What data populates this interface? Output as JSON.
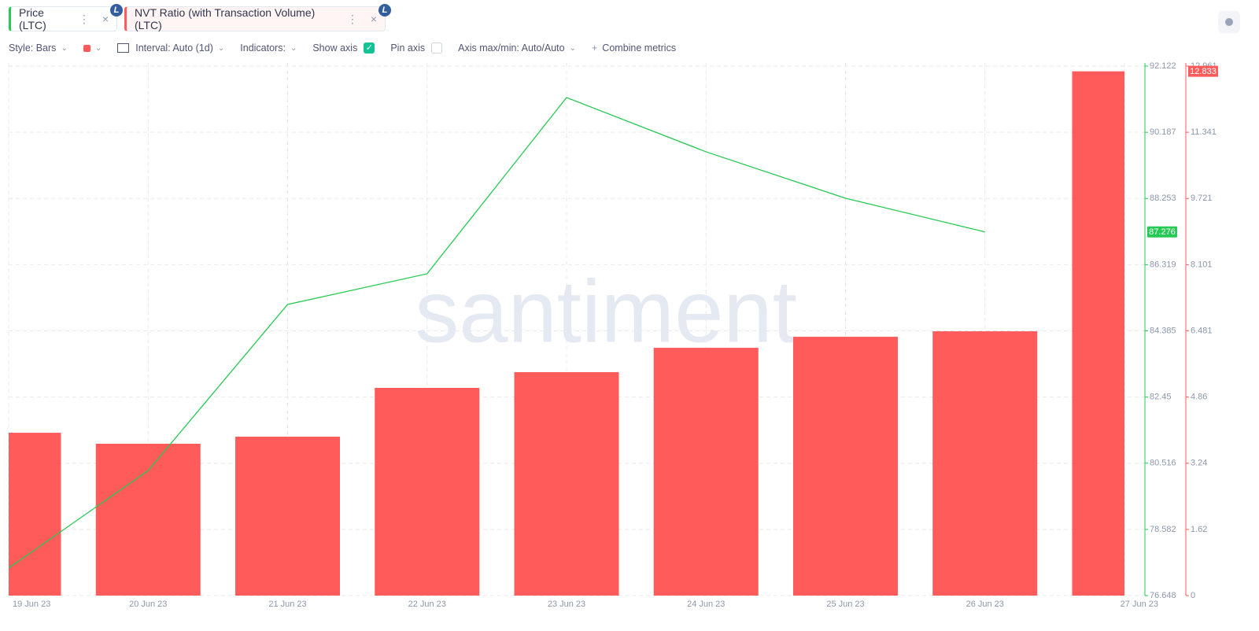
{
  "chart_data": {
    "type": "combo",
    "categories": [
      "19 Jun 23",
      "20 Jun 23",
      "21 Jun 23",
      "22 Jun 23",
      "23 Jun 23",
      "24 Jun 23",
      "25 Jun 23",
      "26 Jun 23",
      "27 Jun 23"
    ],
    "series": [
      {
        "name": "Price (LTC)",
        "type": "line",
        "color": "#26c953",
        "axis": "y",
        "values": [
          77.453,
          80.3,
          85.156,
          86.053,
          91.203,
          89.617,
          88.26,
          87.276,
          null
        ]
      },
      {
        "name": "NVT Ratio (with Transaction Volume) (LTC)",
        "type": "bar",
        "color": "#ff5b5b",
        "axis": "y2",
        "values": [
          3.986,
          3.717,
          3.89,
          5.084,
          5.469,
          6.066,
          6.335,
          6.47,
          12.833
        ]
      }
    ],
    "ylim": [
      76.648,
      92.122
    ],
    "yticks": [
      76.648,
      78.582,
      80.516,
      82.45,
      84.385,
      86.319,
      88.253,
      90.187,
      92.122
    ],
    "y2lim": [
      0,
      12.961
    ],
    "y2ticks": [
      0,
      1.62,
      3.24,
      4.86,
      6.481,
      8.101,
      9.721,
      11.341,
      12.961
    ],
    "grid": true
  },
  "toolbar": {
    "style": "Style: Bars",
    "interval": "Interval: Auto (1d)",
    "indicators": "Indicators:",
    "show_axis": "Show axis",
    "pin_axis": "Pin axis",
    "axis_minmax": "Axis max/min: Auto/Auto",
    "combine": "Combine metrics"
  },
  "watermark": "santiment"
}
